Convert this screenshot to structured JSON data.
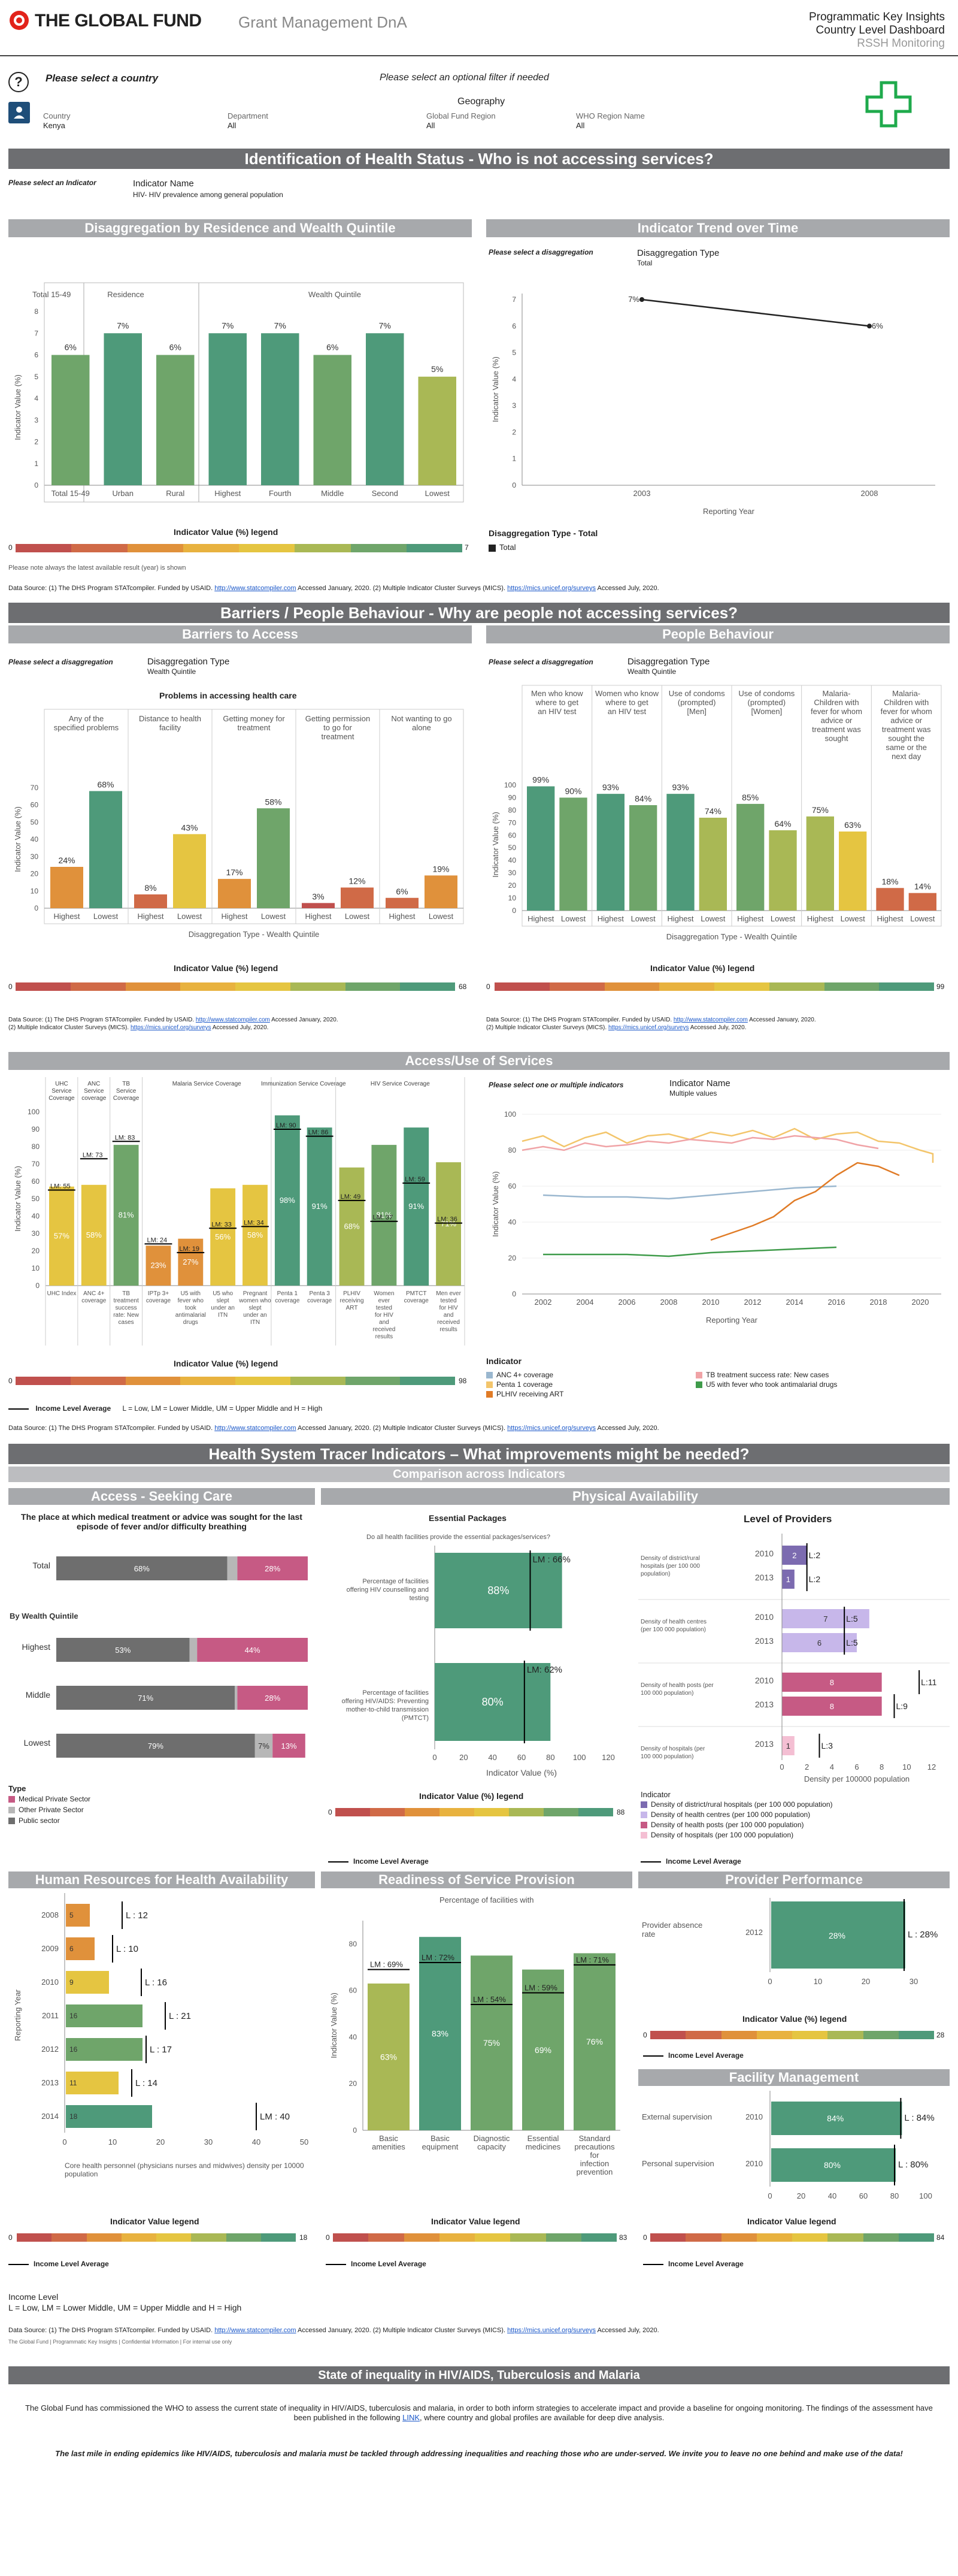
{
  "header": {
    "logo_text": "THE GLOBAL FUND",
    "subtitle": "Grant Management DnA",
    "line1": "Programmatic Key Insights",
    "line2": "Country Level Dashboard",
    "line3": "RSSH Monitoring"
  },
  "filters": {
    "help": "?",
    "select_country": "Please select a country",
    "country_label": "Country",
    "country_value": "Kenya",
    "optional_filter": "Please select an optional filter if needed",
    "geography": "Geography",
    "department_label": "Department",
    "department_value": "All",
    "gf_region_label": "Global Fund Region",
    "gf_region_value": "All",
    "who_region_label": "WHO Region Name",
    "who_region_value": "All"
  },
  "sec1": {
    "title": "Identification of Health Status - Who is not accessing services?",
    "select_indicator": "Please select an Indicator",
    "indicator_label": "Indicator Name",
    "indicator_value": "HIV- HIV prevalence among general population"
  },
  "disagg": {
    "title": "Disaggregation by Residence and Wealth Quintile",
    "group_total": "Total 15-49",
    "group_res": "Residence",
    "group_wealth": "Wealth Quintile",
    "ylabel": "Indicator Value (%)",
    "legend_title": "Indicator Value (%) legend",
    "legend_min": "0",
    "legend_max": "7",
    "note": "Please note always the latest available result (year) is shown"
  },
  "trend": {
    "title": "Indicator Trend over Time",
    "select": "Please select a disaggregation",
    "dtype_label": "Disaggregation Type",
    "dtype_value": "Total",
    "ylabel": "Indicator Value (%)",
    "xlabel": "Reporting Year",
    "legend_title": "Disaggregation Type - Total",
    "legend_item": "Total"
  },
  "source1": {
    "text1": "Data Source: (1) The DHS Program STATcompiler. Funded by USAID.",
    "link1": "http://www.statcompiler.com",
    "text2": "Accessed January, 2020. (2) Multiple Indicator Cluster Surveys (MICS).",
    "link2": "https://mics.unicef.org/surveys",
    "text3": "Accessed July, 2020."
  },
  "sec2": {
    "title": "Barriers / People Behaviour - Why are people not accessing services?"
  },
  "barriers": {
    "title": "Barriers to Access",
    "select": "Please select a disaggregation",
    "dtype_label": "Disaggregation Type",
    "dtype_value": "Wealth Quintile",
    "chart_title": "Problems in accessing health care",
    "ylabel": "Indicator Value (%)",
    "xlabel": "Disaggregation Type - Wealth Quintile",
    "legend_title": "Indicator Value (%) legend",
    "legend_min": "0",
    "legend_max": "68"
  },
  "behaviour": {
    "title": "People Behaviour",
    "select": "Please select a disaggregation",
    "dtype_label": "Disaggregation Type",
    "dtype_value": "Wealth Quintile",
    "ylabel": "Indicator Value (%)",
    "xlabel": "Disaggregation Type - Wealth Quintile",
    "legend_title": "Indicator Value (%) legend",
    "legend_min": "0",
    "legend_max": "99"
  },
  "source2": {
    "line1a": "Data Source: (1) The DHS Program STATcompiler. Funded by USAID.",
    "line1b": "Accessed January, 2020.",
    "line2a": "(2) Multiple Indicator Cluster Surveys (MICS).",
    "line2b": "Accessed July, 2020."
  },
  "access": {
    "title": "Access/Use of Services",
    "ylabel": "Indicator Value (%)",
    "legend_title": "Indicator Value (%) legend",
    "legend_min": "0",
    "legend_max": "98",
    "income_label": "Income Level Average",
    "income_def": "L = Low, LM = Lower Middle, UM = Upper Middle and H = High",
    "select": "Please select one or multiple indicators",
    "ind_label": "Indicator Name",
    "ind_value": "Multiple values",
    "xlabel": "Reporting Year",
    "ind_legend_title": "Indicator"
  },
  "sec3": {
    "title": "Health System Tracer Indicators – What improvements might be needed?",
    "subtitle": "Comparison across Indicators"
  },
  "seeking": {
    "title": "Access - Seeking Care",
    "question": "The place at which medical treatment or advice was sought for the last episode of fever and/or difficulty breathing",
    "by_wealth": "By Wealth Quintile",
    "type_label": "Type"
  },
  "physical": {
    "title": "Physical Availability",
    "ess_title": "Essential Packages",
    "ess_q": "Do all health facilities provide the essential packages/services?",
    "xlabel": "Indicator Value (%)",
    "legend_title": "Indicator Value (%) legend",
    "legend_min": "0",
    "legend_max": "88",
    "income_label": "Income Level Average"
  },
  "providers": {
    "title": "Level of Providers",
    "xlabel": "Density per 100000 population",
    "legend_title": "Indicator",
    "income_label": "Income Level Average"
  },
  "hr": {
    "title": "Human Resources for Health Availability",
    "ylabel": "Reporting Year",
    "xlabel": "Core health personnel (physicians nurses and midwives) density per 10000 population",
    "legend_title": "Indicator Value legend",
    "legend_min": "0",
    "legend_max": "18",
    "income_label": "Income Level Average"
  },
  "readiness": {
    "title": "Readiness of Service Provision",
    "subtitle": "Percentage of facilities with",
    "ylabel": "Indicator Value (%)",
    "legend_title": "Indicator Value legend",
    "legend_min": "0",
    "legend_max": "83",
    "income_label": "Income Level Average"
  },
  "perf": {
    "title": "Provider Performance",
    "row_label": "Provider absence rate",
    "year": "2012",
    "legend_title": "Indicator Value (%) legend",
    "legend_min": "0",
    "legend_max": "28",
    "income_label": "Income Level Average"
  },
  "facility": {
    "title": "Facility Management",
    "legend_title": "Indicator Value legend",
    "legend_min": "0",
    "legend_max": "84",
    "income_label": "Income Level Average"
  },
  "footer": {
    "income_level": "Income Level",
    "income_def": "L = Low, LM = Lower Middle, UM = Upper Middle and H = High",
    "source_a": "Data Source: (1) The DHS Program STATcompiler. Funded by USAID.",
    "source_b": "Accessed January, 2020. (2) Multiple Indicator Cluster Surveys (MICS).",
    "source_c": "Accessed July, 2020.",
    "confidential": "The Global Fund | Programmatic Key Insights | Confidential Information | For internal use only",
    "ineq_title": "State of inequality in HIV/AIDS, Tuberculosis and Malaria",
    "ineq_text1": "The Global Fund has commissioned the WHO to assess the current state of inequality in HIV/AIDS, tuberculosis and malaria, in order to both inform strategies to accelerate impact and provide a baseline for ongoing monitoring. The findings of the assessment have been published in the following",
    "ineq_link": "LINK",
    "ineq_text2": ", where country and global profiles are available for deep dive analysis.",
    "closing": "The last mile in ending epidemics like HIV/AIDS, tuberculosis and malaria must be tackled through addressing inequalities and reaching those who are under-served. We invite you to leave no one behind and make use of the data!"
  },
  "colors": {
    "accent_gray": "#6d6e71",
    "green": "#4e9a7a",
    "teal": "#4e9a7a",
    "orange": "#e0913b",
    "red": "#c0504d",
    "yellow": "#e5c541",
    "pink": "#c65a84",
    "purple": "#7c6bb0"
  },
  "chart_data": [
    {
      "id": "disagg",
      "type": "bar",
      "title": "Disaggregation by Residence and Wealth Quintile",
      "categories": [
        "Total 15-49",
        "Urban",
        "Rural",
        "Highest",
        "Fourth",
        "Middle",
        "Second",
        "Lowest"
      ],
      "values": [
        6,
        7,
        6,
        7,
        7,
        6,
        7,
        5
      ],
      "ylim": [
        0,
        8
      ],
      "ylabel": "Indicator Value (%)",
      "yticks": [
        0,
        1,
        2,
        3,
        4,
        5,
        6,
        7,
        8
      ]
    },
    {
      "id": "trend",
      "type": "line",
      "title": "Indicator Trend over Time",
      "x": [
        2003,
        2008
      ],
      "values": [
        7,
        6
      ],
      "ylim": [
        0,
        7
      ],
      "xlabel": "Reporting Year",
      "ylabel": "Indicator Value (%)",
      "yticks": [
        0,
        1,
        2,
        3,
        4,
        5,
        6,
        7
      ],
      "xticks": [
        2003,
        2008
      ]
    },
    {
      "id": "barriers",
      "type": "bar",
      "title": "Problems in accessing health care",
      "groups": [
        "Any of the specified problems",
        "Distance to health facility",
        "Getting money for treatment",
        "Getting permission to go for treatment",
        "Not wanting to go alone"
      ],
      "categories": [
        "Highest",
        "Lowest"
      ],
      "values": [
        [
          24,
          68
        ],
        [
          8,
          43
        ],
        [
          17,
          58
        ],
        [
          3,
          12
        ],
        [
          6,
          19
        ]
      ],
      "ylim": [
        0,
        80
      ],
      "ylabel": "Indicator Value (%)",
      "yticks": [
        0,
        10,
        20,
        30,
        40,
        50,
        60,
        70
      ]
    },
    {
      "id": "behaviour",
      "type": "bar",
      "groups": [
        "Men who know where to get an HIV test",
        "Women who know where to get an HIV test",
        "Use of condoms (prompted) [Men]",
        "Use of condoms (prompted) [Women]",
        "Malaria- Children with fever for whom advice or treatment was sought",
        "Malaria- Children with fever for whom advice or treatment was sought the same or the next day"
      ],
      "categories": [
        "Highest",
        "Lowest"
      ],
      "values": [
        [
          99,
          90
        ],
        [
          93,
          84
        ],
        [
          93,
          74
        ],
        [
          85,
          64
        ],
        [
          75,
          63
        ],
        [
          18,
          14
        ]
      ],
      "ylim": [
        0,
        105
      ],
      "ylabel": "Indicator Value (%)",
      "yticks": [
        0,
        10,
        20,
        30,
        40,
        50,
        60,
        70,
        80,
        90,
        100
      ]
    },
    {
      "id": "access",
      "type": "bar",
      "groups": [
        "UHC Service Coverage",
        "ANC Service coverage",
        "TB Service Coverage",
        "Malaria Service Coverage",
        "Immunization Service Coverage",
        "HIV Service Coverage"
      ],
      "categories": [
        "UHC Index",
        "ANC 4+ coverage",
        "TB treatment success rate: New cases",
        "IPTp 3+ coverage",
        "U5 with fever who took antimalarial drugs",
        "U5 who slept under an ITN",
        "Pregnant women who slept under an ITN",
        "Penta 1 coverage",
        "Penta 3 coverage",
        "PLHIV receiving ART",
        "Women ever tested for HIV and received results",
        "PMTCT coverage",
        "Men ever tested for HIV and received results"
      ],
      "values": [
        57,
        58,
        81,
        23,
        27,
        56,
        58,
        98,
        91,
        68,
        81,
        91,
        71
      ],
      "income_levels": [
        "LM: 55",
        "LM: 73",
        "LM: 83",
        "LM: 24",
        "LM: 19",
        "LM: 33",
        "LM: 34",
        "LM: 90",
        "LM: 86",
        "LM: 49",
        "LM: 37",
        "LM: 59",
        "LM: 36"
      ],
      "ylim": [
        0,
        100
      ],
      "ylabel": "Indicator Value (%)",
      "yticks": [
        0,
        10,
        20,
        30,
        40,
        50,
        60,
        70,
        80,
        90,
        100
      ]
    },
    {
      "id": "access_trend",
      "type": "line",
      "x": [
        2002,
        2004,
        2006,
        2008,
        2010,
        2012,
        2014,
        2016,
        2018,
        2020
      ],
      "series": [
        {
          "name": "ANC 4+ coverage",
          "color": "#9ab7cf"
        },
        {
          "name": "Penta 1 coverage",
          "color": "#f3c56b"
        },
        {
          "name": "PLHIV receiving ART",
          "color": "#e07b26"
        },
        {
          "name": "TB treatment success rate: New cases",
          "color": "#f0a3a6"
        },
        {
          "name": "U5 with fever who took antimalarial drugs",
          "color": "#3f9b4a"
        }
      ],
      "ylim": [
        0,
        100
      ],
      "xlabel": "Reporting Year",
      "yticks": [
        0,
        20,
        40,
        60,
        80,
        100
      ]
    },
    {
      "id": "seeking",
      "type": "bar",
      "orientation": "horizontal",
      "stacked": true,
      "categories": [
        "Total",
        "Highest",
        "Middle",
        "Lowest"
      ],
      "series": [
        {
          "name": "Medical Private Sector",
          "values": [
            28,
            44,
            28,
            13
          ]
        },
        {
          "name": "Other Private Sector",
          "values": [
            4,
            3,
            1,
            7
          ]
        },
        {
          "name": "Public sector",
          "values": [
            68,
            53,
            71,
            79
          ]
        }
      ]
    },
    {
      "id": "essential",
      "type": "bar",
      "orientation": "horizontal",
      "categories": [
        "Percentage of facilities offering HIV  counselling and testing",
        "Percentage of facilities offering HIV/AIDS: Preventing mother-to-child transmission (PMTCT)"
      ],
      "values": [
        88,
        80
      ],
      "income_levels": [
        "LM : 66%",
        "LM: 62%"
      ],
      "xlim": [
        0,
        120
      ],
      "xticks": [
        0,
        20,
        40,
        60,
        80,
        100,
        120
      ]
    },
    {
      "id": "providers",
      "type": "bar",
      "orientation": "horizontal",
      "categories": [
        "Density of district/rural hospitals (per 100 000 population)",
        "Density of health centres (per 100 000 population)",
        "Density of health posts (per 100 000 population)",
        "Density of hospitals (per 100 000 population)"
      ],
      "rows": [
        {
          "cat": 0,
          "year": "2010",
          "value": 2,
          "lvl": "L:2"
        },
        {
          "cat": 0,
          "year": "2013",
          "value": 1,
          "lvl": "L:2"
        },
        {
          "cat": 1,
          "year": "2010",
          "value": 7,
          "lvl": "L:5"
        },
        {
          "cat": 1,
          "year": "2013",
          "value": 6,
          "lvl": "L:5"
        },
        {
          "cat": 2,
          "year": "2010",
          "value": 8,
          "lvl": "L:11"
        },
        {
          "cat": 2,
          "year": "2013",
          "value": 8,
          "lvl": "L:9"
        },
        {
          "cat": 3,
          "year": "2013",
          "value": 1,
          "lvl": "L:3"
        }
      ],
      "xlim": [
        0,
        12
      ],
      "xticks": [
        0,
        2,
        4,
        6,
        8,
        10,
        12
      ],
      "legend": [
        "Density of district/rural hospitals (per 100 000 population)",
        "Density of health centres (per 100 000 population)",
        "Density of health posts (per 100 000 population)",
        "Density of hospitals (per 100 000 population)"
      ]
    },
    {
      "id": "hr",
      "type": "bar",
      "orientation": "horizontal",
      "categories": [
        "2008",
        "2009",
        "2010",
        "2011",
        "2012",
        "2013",
        "2014"
      ],
      "values": [
        5,
        6,
        9,
        16,
        16,
        11,
        18
      ],
      "income_levels": [
        "L : 12",
        "L : 10",
        "L : 16",
        "L : 21",
        "L : 17",
        "L : 14",
        "LM : 40"
      ],
      "xlim": [
        0,
        50
      ],
      "xticks": [
        0,
        10,
        20,
        30,
        40,
        50
      ]
    },
    {
      "id": "readiness",
      "type": "bar",
      "categories": [
        "Basic amenities",
        "Basic equipment",
        "Diagnostic capacity",
        "Essential medicines",
        "Standard precautions for infection prevention"
      ],
      "values": [
        63,
        83,
        75,
        69,
        76
      ],
      "income_levels": [
        "LM : 69%",
        "LM : 72%",
        "LM : 54%",
        "LM : 59%",
        "LM : 71%"
      ],
      "ylim": [
        0,
        90
      ],
      "yticks": [
        0,
        20,
        40,
        60,
        80
      ]
    },
    {
      "id": "performance",
      "type": "bar",
      "orientation": "horizontal",
      "categories": [
        "Provider absence rate"
      ],
      "values": [
        28
      ],
      "income_levels": [
        "L : 28%"
      ],
      "xlim": [
        0,
        30
      ],
      "xticks": [
        0,
        10,
        20,
        30
      ]
    },
    {
      "id": "facility",
      "type": "bar",
      "orientation": "horizontal",
      "categories": [
        "External supervision",
        "Personal supervision"
      ],
      "years": [
        "2010",
        "2010"
      ],
      "values": [
        84,
        80
      ],
      "income_levels": [
        "L : 84%",
        "L : 80%"
      ],
      "xlim": [
        0,
        100
      ],
      "xticks": [
        0,
        20,
        40,
        60,
        80,
        100
      ]
    }
  ]
}
